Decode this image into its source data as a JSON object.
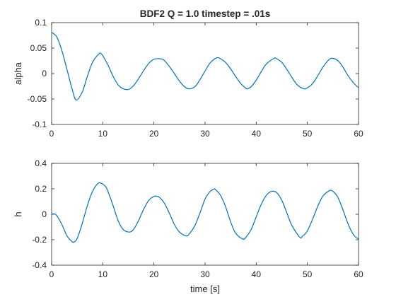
{
  "figure": {
    "colors": {
      "series": "#0072BD",
      "axes": "#262626",
      "background": "#ffffff"
    }
  },
  "chart_data": [
    {
      "type": "line",
      "title": "BDF2 Q = 1.0 timestep = .01s",
      "xlabel": "",
      "ylabel": "alpha",
      "xlim": [
        0,
        60
      ],
      "ylim": [
        -0.1,
        0.1
      ],
      "grid": false,
      "xticks": [
        0,
        10,
        20,
        30,
        40,
        50,
        60
      ],
      "xtick_labels": [
        "0",
        "10",
        "20",
        "30",
        "40",
        "50",
        "60"
      ],
      "yticks": [
        -0.1,
        -0.05,
        0,
        0.05,
        0.1
      ],
      "ytick_labels": [
        "-0.1",
        "-0.05",
        "0",
        "0.05",
        "0.1"
      ],
      "series": [
        {
          "color": "#0072BD",
          "x": [
            0,
            1,
            2,
            3,
            4,
            4.8,
            6,
            7,
            8,
            9,
            9.7,
            11,
            12,
            13,
            14,
            15.1,
            16,
            17,
            18,
            19,
            20,
            21.2,
            22,
            23,
            24,
            25,
            26,
            26.8,
            28,
            29,
            30,
            31,
            32.3,
            33,
            34,
            35,
            36,
            37,
            38,
            38.2,
            39,
            40,
            41,
            42,
            43.5,
            44,
            45,
            46,
            47,
            48,
            49.3,
            50,
            51,
            52,
            53,
            54,
            54.8,
            56,
            57,
            58,
            59,
            60
          ],
          "y": [
            0.081,
            0.072,
            0.045,
            0.008,
            -0.03,
            -0.052,
            -0.036,
            -0.005,
            0.022,
            0.036,
            0.039,
            0.017,
            -0.005,
            -0.022,
            -0.03,
            -0.031,
            -0.024,
            -0.01,
            0.006,
            0.02,
            0.028,
            0.029,
            0.026,
            0.014,
            0.0,
            -0.015,
            -0.026,
            -0.03,
            -0.026,
            -0.012,
            0.005,
            0.021,
            0.031,
            0.029,
            0.022,
            0.009,
            -0.006,
            -0.02,
            -0.029,
            -0.03,
            -0.026,
            -0.013,
            0.004,
            0.019,
            0.03,
            0.029,
            0.022,
            0.008,
            -0.008,
            -0.022,
            -0.03,
            -0.028,
            -0.02,
            -0.005,
            0.012,
            0.025,
            0.03,
            0.025,
            0.012,
            -0.005,
            -0.018,
            -0.028
          ]
        }
      ]
    },
    {
      "type": "line",
      "title": "",
      "xlabel": "time [s]",
      "ylabel": "h",
      "xlim": [
        0,
        60
      ],
      "ylim": [
        -0.4,
        0.4
      ],
      "grid": false,
      "xticks": [
        0,
        10,
        20,
        30,
        40,
        50,
        60
      ],
      "xtick_labels": [
        "0",
        "10",
        "20",
        "30",
        "40",
        "50",
        "60"
      ],
      "yticks": [
        -0.4,
        -0.2,
        0,
        0.2,
        0.4
      ],
      "ytick_labels": [
        "-0.4",
        "-0.2",
        "0",
        "0.2",
        "0.4"
      ],
      "series": [
        {
          "color": "#0072BD",
          "x": [
            0,
            0.5,
            1,
            2,
            3,
            4,
            4.3,
            5,
            6,
            7,
            8,
            9,
            9.6,
            10.5,
            11,
            12,
            13,
            14,
            15.2,
            16,
            17,
            18,
            19,
            20,
            20.5,
            21,
            22,
            23,
            24,
            25,
            26.3,
            27,
            28,
            29,
            30,
            31,
            31.8,
            32,
            33,
            34,
            35,
            36,
            37.4,
            38,
            39,
            40,
            41,
            42,
            43,
            44,
            45,
            46,
            47,
            48.5,
            49,
            50,
            51,
            52,
            53,
            54.3,
            55,
            56,
            57,
            58,
            59,
            60
          ],
          "y": [
            0.0,
            0.003,
            -0.01,
            -0.08,
            -0.17,
            -0.215,
            -0.22,
            -0.19,
            -0.07,
            0.07,
            0.18,
            0.24,
            0.245,
            0.22,
            0.18,
            0.07,
            -0.05,
            -0.12,
            -0.14,
            -0.12,
            -0.05,
            0.04,
            0.11,
            0.14,
            0.142,
            0.135,
            0.09,
            0.01,
            -0.08,
            -0.14,
            -0.17,
            -0.15,
            -0.09,
            0.01,
            0.12,
            0.18,
            0.198,
            0.195,
            0.15,
            0.06,
            -0.06,
            -0.15,
            -0.195,
            -0.18,
            -0.12,
            -0.02,
            0.08,
            0.15,
            0.18,
            0.17,
            0.11,
            0.01,
            -0.09,
            -0.18,
            -0.175,
            -0.13,
            -0.04,
            0.06,
            0.14,
            0.185,
            0.18,
            0.13,
            0.03,
            -0.08,
            -0.16,
            -0.195
          ]
        }
      ]
    }
  ]
}
